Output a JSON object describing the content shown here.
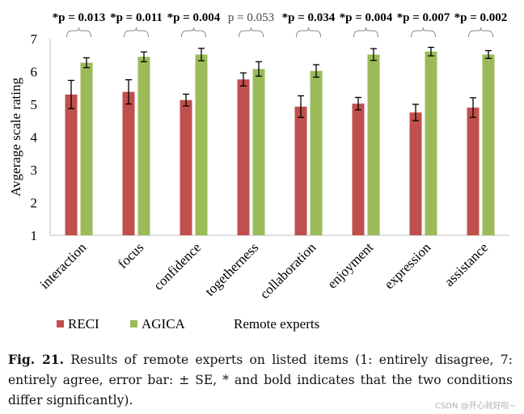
{
  "chart_data": {
    "type": "bar",
    "title": "",
    "xlabel": "",
    "ylabel": "Avgerage scale rating",
    "ylim": [
      1,
      7
    ],
    "yticks": [
      1,
      2,
      3,
      4,
      5,
      6,
      7
    ],
    "categories": [
      "interaction",
      "focus",
      "confidence",
      "togetherness",
      "collaboration",
      "enjoyment",
      "expression",
      "assistance"
    ],
    "series": [
      {
        "name": "RECI",
        "color": "#c0504d",
        "values": [
          5.3,
          5.38,
          5.13,
          5.76,
          4.93,
          5.02,
          4.75,
          4.9
        ],
        "errors": [
          0.43,
          0.37,
          0.18,
          0.2,
          0.33,
          0.19,
          0.25,
          0.3
        ]
      },
      {
        "name": "AGICA",
        "color": "#9bbb59",
        "values": [
          6.27,
          6.45,
          6.52,
          6.08,
          6.02,
          6.52,
          6.61,
          6.52
        ],
        "errors": [
          0.15,
          0.15,
          0.19,
          0.22,
          0.19,
          0.18,
          0.13,
          0.12
        ]
      }
    ],
    "significance": [
      {
        "label": "*p = 0.013",
        "bold": true
      },
      {
        "label": "*p = 0.011",
        "bold": true
      },
      {
        "label": "*p = 0.004",
        "bold": true
      },
      {
        "label": "p = 0.053",
        "bold": false
      },
      {
        "label": "*p = 0.034",
        "bold": true
      },
      {
        "label": "*p = 0.004",
        "bold": true
      },
      {
        "label": "*p = 0.007",
        "bold": true
      },
      {
        "label": "*p = 0.002",
        "bold": true
      }
    ],
    "legend_title": "Remote experts",
    "grid": false
  },
  "caption": {
    "fig_label": "Fig. 21.",
    "text": " Results of remote experts on listed items (1: entirely disagree, 7: entirely agree, error bar: ± SE, * and bold indicates that the two conditions differ significantly)."
  },
  "watermark": "CSDN @开心就好啦~"
}
